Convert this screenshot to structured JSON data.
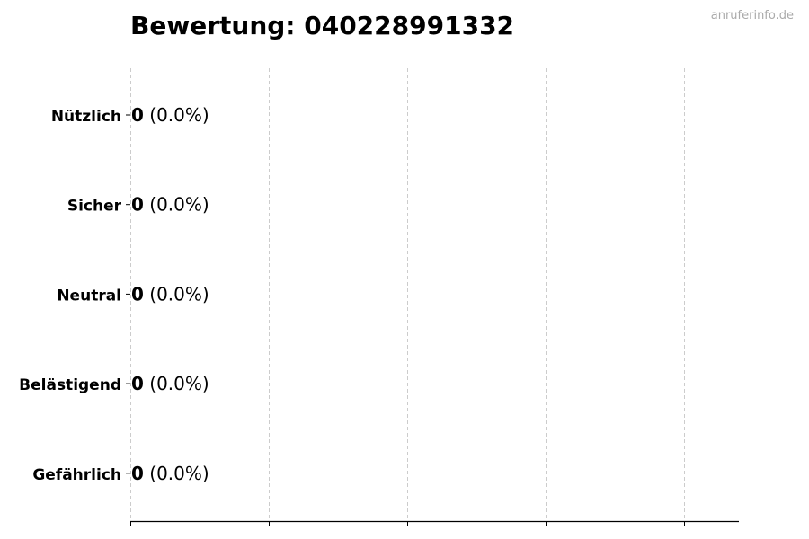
{
  "chart_data": {
    "type": "bar",
    "orientation": "horizontal",
    "title": "Bewertung: 040228991332",
    "watermark": "anruferinfo.de",
    "categories": [
      "Nützlich",
      "Sicher",
      "Neutral",
      "Belästigend",
      "Gefährlich"
    ],
    "values": [
      0,
      0,
      0,
      0,
      0
    ],
    "data_labels": [
      {
        "count": "0",
        "percent": "(0.0%)"
      },
      {
        "count": "0",
        "percent": "(0.0%)"
      },
      {
        "count": "0",
        "percent": "(0.0%)"
      },
      {
        "count": "0",
        "percent": "(0.0%)"
      },
      {
        "count": "0",
        "percent": "(0.0%)"
      }
    ],
    "xlabel": "",
    "ylabel": "",
    "x_ticks_count": 5,
    "grid": "vertical dashed",
    "bar_edge_color": "#000000",
    "grid_color": "#cccccc"
  }
}
